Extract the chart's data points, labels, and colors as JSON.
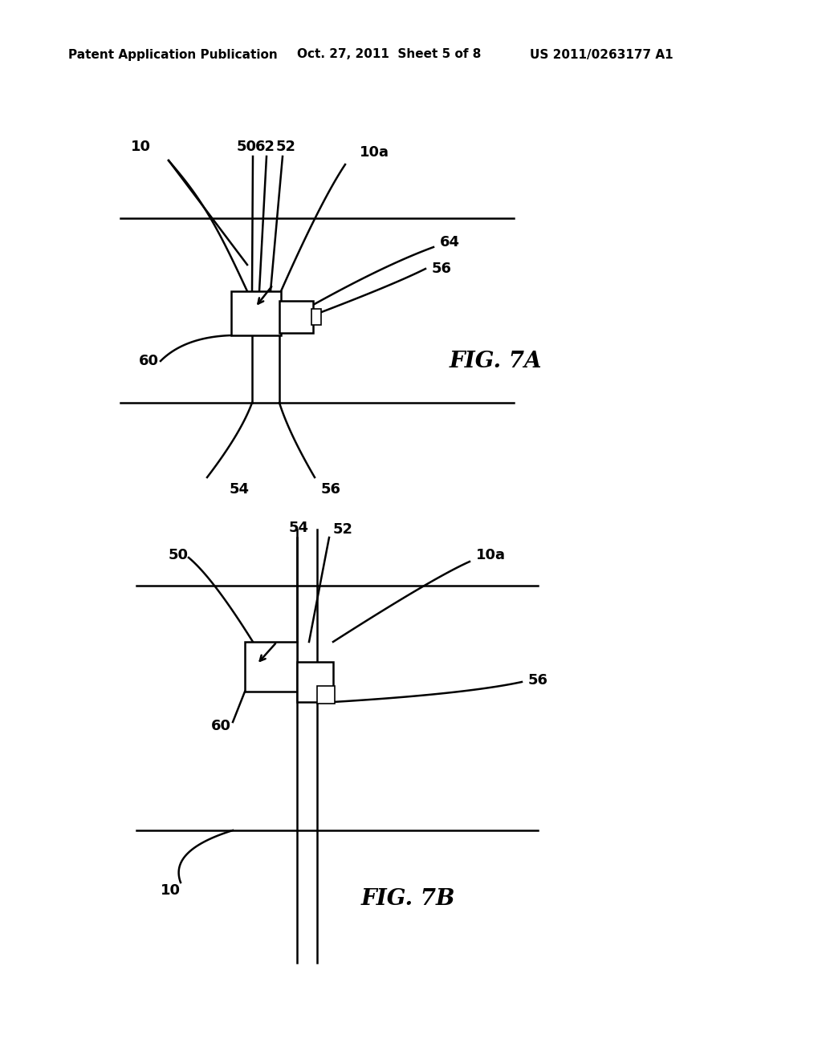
{
  "bg_color": "#ffffff",
  "header_text": "Patent Application Publication",
  "header_date": "Oct. 27, 2011  Sheet 5 of 8",
  "header_patent": "US 2011/0263177 A1",
  "fig7a_label": "FIG. 7A",
  "fig7b_label": "FIG. 7B",
  "line_color": "#000000",
  "lw_thin": 1.2,
  "lw_med": 1.8,
  "lw_thick": 2.2,
  "label_fontsize": 13,
  "header_fontsize": 11,
  "fig_label_fontsize": 20
}
